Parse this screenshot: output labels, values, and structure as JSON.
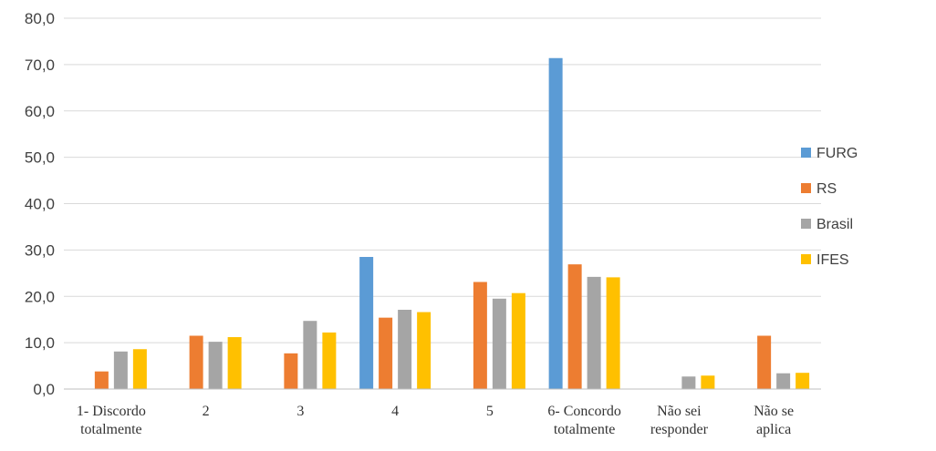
{
  "chart_data": {
    "type": "bar",
    "title": "",
    "xlabel": "",
    "ylabel": "",
    "ylim": [
      0,
      80
    ],
    "yticks": [
      "0,0",
      "10,0",
      "20,0",
      "30,0",
      "40,0",
      "50,0",
      "60,0",
      "70,0",
      "80,0"
    ],
    "grid": true,
    "legend_position": "right",
    "categories": [
      [
        "1- Discordo",
        "totalmente"
      ],
      [
        "2"
      ],
      [
        "3"
      ],
      [
        "4"
      ],
      [
        "5"
      ],
      [
        "6- Concordo",
        "totalmente"
      ],
      [
        "Não sei",
        "responder"
      ],
      [
        "Não se",
        "aplica"
      ]
    ],
    "series": [
      {
        "name": "FURG",
        "color": "#5b9bd5",
        "values": [
          0,
          0,
          0,
          28.5,
          0,
          71.4,
          0,
          0
        ]
      },
      {
        "name": "RS",
        "color": "#ed7d31",
        "values": [
          3.8,
          11.5,
          7.7,
          15.4,
          23.1,
          26.9,
          0,
          11.5
        ]
      },
      {
        "name": "Brasil",
        "color": "#a5a5a5",
        "values": [
          8.1,
          10.2,
          14.7,
          17.1,
          19.5,
          24.2,
          2.7,
          3.4
        ]
      },
      {
        "name": "IFES",
        "color": "#ffc000",
        "values": [
          8.6,
          11.2,
          12.2,
          16.6,
          20.7,
          24.1,
          2.9,
          3.5
        ]
      }
    ]
  }
}
